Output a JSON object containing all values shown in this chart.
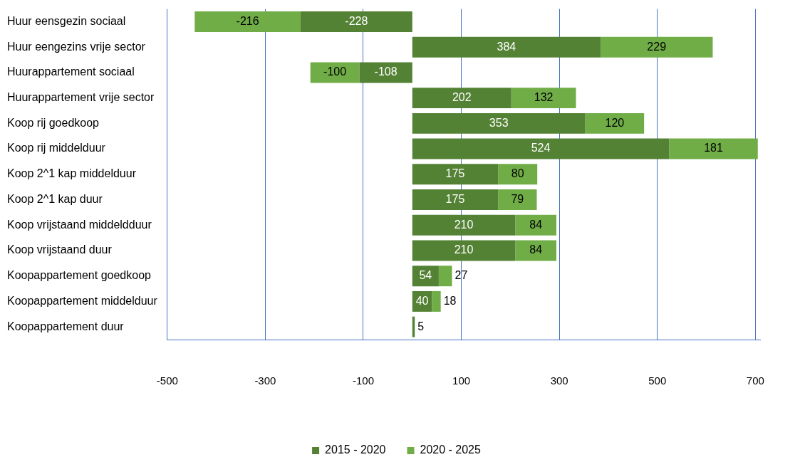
{
  "chart_data": {
    "type": "bar",
    "orientation": "horizontal",
    "stacked": true,
    "categories": [
      "Huur eensgezin sociaal",
      "Huur eengezins vrije sector",
      "Huurappartement sociaal",
      "Huurappartement vrije sector",
      "Koop rij goedkoop",
      "Koop rij middelduur",
      "Koop 2^1 kap middelduur",
      "Koop 2^1 kap duur",
      "Koop vrijstaand middeldduur",
      "Koop vrijstaand duur",
      "Koopappartement goedkoop",
      "Koopappartement middelduur",
      "Koopappartement duur"
    ],
    "series": [
      {
        "name": "2015 - 2020",
        "color": "#548235",
        "values": [
          -228,
          384,
          -108,
          202,
          353,
          524,
          175,
          175,
          210,
          210,
          54,
          40,
          5
        ]
      },
      {
        "name": "2020 - 2025",
        "color": "#70ad47",
        "values": [
          -216,
          229,
          -100,
          132,
          120,
          181,
          80,
          79,
          84,
          84,
          27,
          18,
          null
        ]
      }
    ],
    "xlim": [
      -500,
      710
    ],
    "xticks": [
      -500,
      -300,
      -100,
      100,
      300,
      500,
      700
    ],
    "grid": "x",
    "legend": "bottom",
    "data_labels": true
  }
}
